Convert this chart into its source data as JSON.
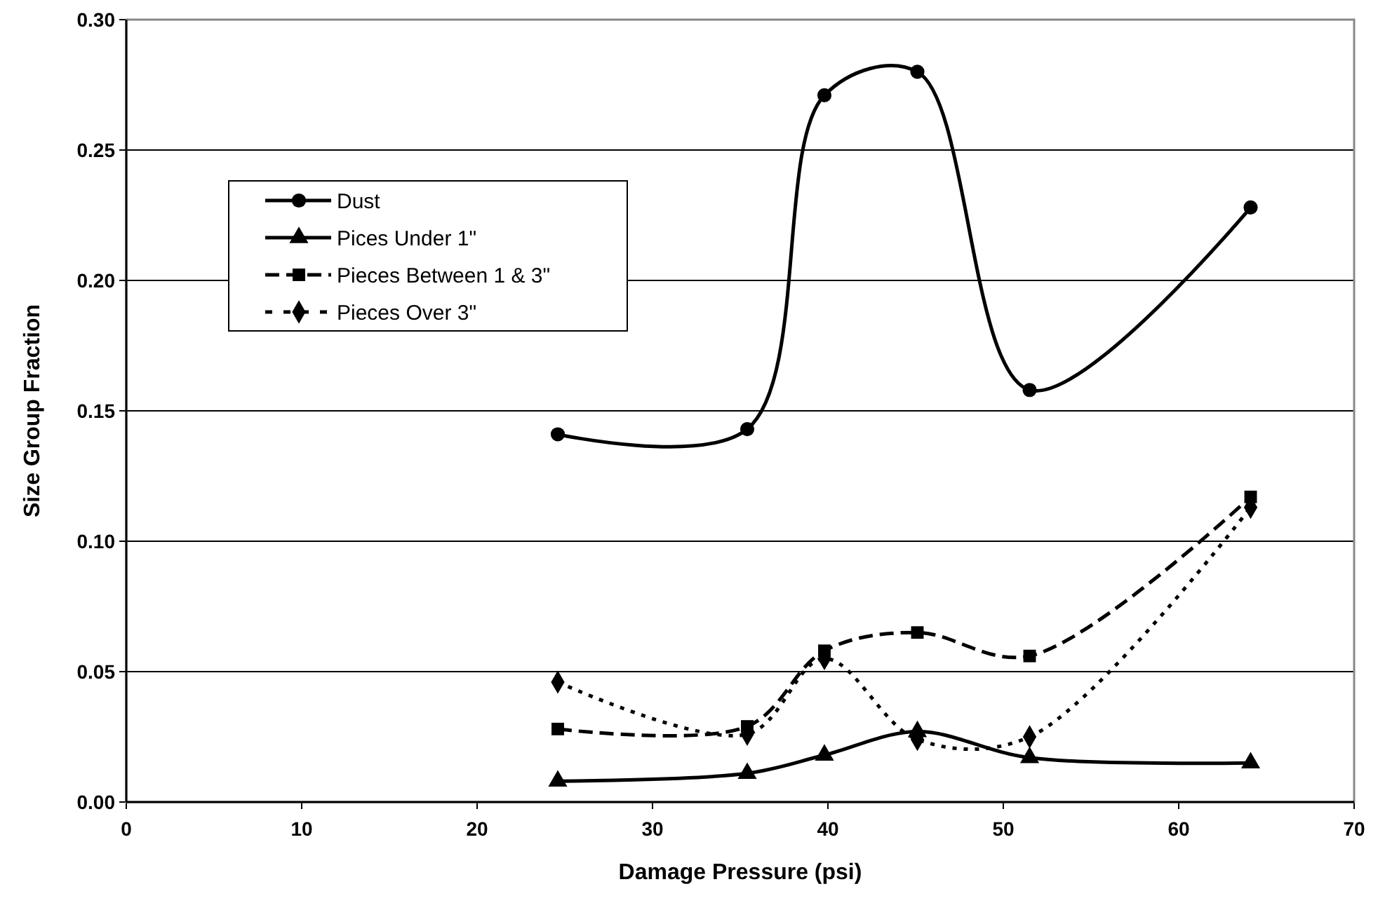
{
  "chart_data": {
    "type": "line",
    "xlabel": "Damage Pressure (psi)",
    "ylabel": "Size Group Fraction",
    "xlim": [
      0,
      70
    ],
    "xticks": [
      0,
      10,
      20,
      30,
      40,
      50,
      60,
      70
    ],
    "ylim": [
      0,
      0.3
    ],
    "yticks": [
      {
        "value": 0,
        "label": "0.00"
      },
      {
        "value": 0.05,
        "label": "0.05"
      },
      {
        "value": 0.1,
        "label": "0.10"
      },
      {
        "value": 0.15,
        "label": "0.15"
      },
      {
        "value": 0.2,
        "label": "0.20"
      },
      {
        "value": 0.25,
        "label": "0.25"
      },
      {
        "value": 0.3,
        "label": "0.30"
      }
    ],
    "grid": "y",
    "legend": "top left",
    "x": [
      24.6,
      35.4,
      39.8,
      45.1,
      51.5,
      64.1
    ],
    "series": [
      {
        "name": "Dust",
        "color": "#000000",
        "marker": "circle",
        "line_style": "solid",
        "values": [
          0.141,
          0.143,
          0.271,
          0.28,
          0.158,
          0.228
        ]
      },
      {
        "name": "Pices Under 1\"",
        "color": "#000000",
        "marker": "triangle",
        "line_style": "solid",
        "values": [
          0.008,
          0.011,
          0.018,
          0.027,
          0.017,
          0.015
        ]
      },
      {
        "name": "Pieces Between 1 & 3\"",
        "color": "#000000",
        "marker": "square",
        "line_style": "dashed",
        "values": [
          0.028,
          0.029,
          0.058,
          0.065,
          0.056,
          0.117
        ]
      },
      {
        "name": "Pieces Over 3\"",
        "color": "#000000",
        "marker": "diamond",
        "line_style": "dotted",
        "values": [
          0.046,
          0.026,
          0.055,
          0.024,
          0.025,
          0.113
        ]
      }
    ]
  }
}
